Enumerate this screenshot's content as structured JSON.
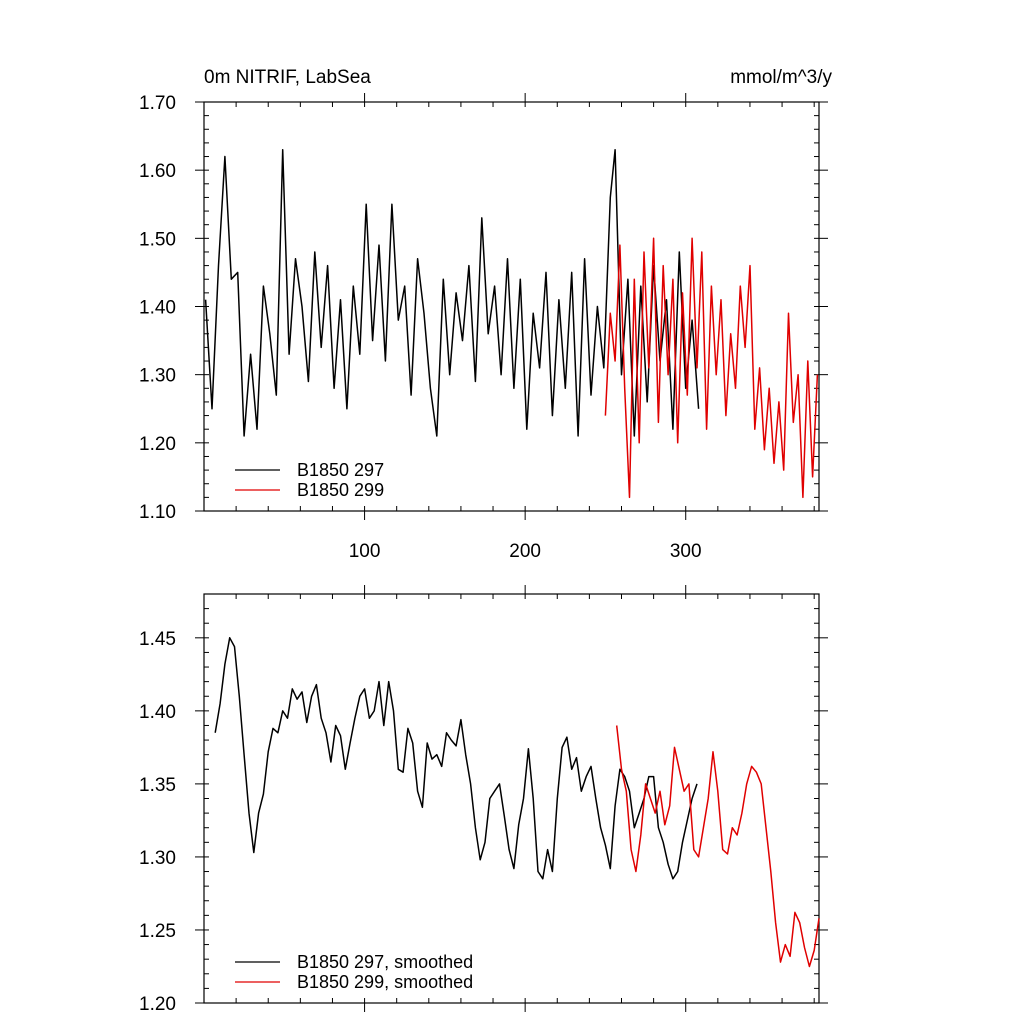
{
  "chart_data": [
    {
      "type": "line",
      "title": "0m NITRIF, LabSea",
      "units": "mmol/m^3/y",
      "xlim": [
        0,
        383
      ],
      "ylim": [
        1.1,
        1.7
      ],
      "yticks": [
        1.1,
        1.2,
        1.3,
        1.4,
        1.5,
        1.6,
        1.7
      ],
      "ytick_labels": [
        "1.10",
        "1.20",
        "1.30",
        "1.40",
        "1.50",
        "1.60",
        "1.70"
      ],
      "xticks": [
        100,
        200,
        300
      ],
      "xtick_labels": [
        "100",
        "200",
        "300"
      ],
      "legend_position": "bottom-left",
      "series": [
        {
          "name": "B1850 297",
          "color": "#000000",
          "x": [
            1,
            5,
            9,
            13,
            17,
            21,
            25,
            29,
            33,
            37,
            41,
            45,
            49,
            53,
            57,
            61,
            65,
            69,
            73,
            77,
            81,
            85,
            89,
            93,
            97,
            101,
            105,
            109,
            113,
            117,
            121,
            125,
            129,
            133,
            137,
            141,
            145,
            149,
            153,
            157,
            161,
            165,
            169,
            173,
            177,
            181,
            185,
            189,
            193,
            197,
            201,
            205,
            209,
            213,
            217,
            221,
            225,
            229,
            233,
            237,
            241,
            245,
            249,
            253,
            256,
            260,
            264,
            268,
            272,
            276,
            280,
            284,
            288,
            292,
            296,
            300,
            304,
            308,
            312,
            316,
            320,
            324,
            328,
            332,
            336,
            340,
            344,
            348,
            352,
            356,
            360,
            364,
            368,
            372,
            376,
            380,
            383
          ],
          "values": [
            1.41,
            1.25,
            1.46,
            1.62,
            1.44,
            1.45,
            1.21,
            1.33,
            1.22,
            1.43,
            1.36,
            1.27,
            1.63,
            1.33,
            1.47,
            1.4,
            1.29,
            1.48,
            1.34,
            1.46,
            1.28,
            1.41,
            1.25,
            1.43,
            1.33,
            1.55,
            1.35,
            1.49,
            1.32,
            1.55,
            1.38,
            1.43,
            1.27,
            1.47,
            1.39,
            1.28,
            1.21,
            1.44,
            1.3,
            1.42,
            1.35,
            1.46,
            1.29,
            1.53,
            1.36,
            1.43,
            1.3,
            1.47,
            1.28,
            1.44,
            1.22,
            1.39,
            1.31,
            1.45,
            1.24,
            1.41,
            1.28,
            1.45,
            1.21,
            1.47,
            1.27,
            1.4,
            1.31,
            1.56,
            1.63,
            1.3,
            1.44,
            1.21,
            1.43,
            1.26,
            1.46,
            1.32,
            1.41,
            1.22,
            1.48,
            1.28,
            1.38,
            1.25,
            null,
            null,
            null,
            null,
            null,
            null,
            null,
            null,
            null,
            null,
            null,
            null,
            null,
            null,
            null,
            null,
            null,
            null,
            null
          ]
        },
        {
          "name": "B1850 299",
          "color": "#e00000",
          "x": [
            250,
            253,
            256,
            259,
            262,
            265,
            268,
            271,
            274,
            277,
            280,
            283,
            286,
            289,
            292,
            295,
            298,
            301,
            304,
            307,
            310,
            313,
            316,
            319,
            322,
            325,
            328,
            331,
            334,
            337,
            340,
            343,
            346,
            349,
            352,
            355,
            358,
            361,
            364,
            367,
            370,
            373,
            376,
            379,
            382
          ],
          "values": [
            1.24,
            1.39,
            1.32,
            1.49,
            1.28,
            1.12,
            1.44,
            1.2,
            1.48,
            1.31,
            1.5,
            1.23,
            1.46,
            1.3,
            1.44,
            1.2,
            1.42,
            1.27,
            1.5,
            1.31,
            1.48,
            1.22,
            1.43,
            1.3,
            1.41,
            1.24,
            1.36,
            1.28,
            1.43,
            1.34,
            1.46,
            1.22,
            1.31,
            1.19,
            1.28,
            1.17,
            1.26,
            1.16,
            1.39,
            1.23,
            1.3,
            1.12,
            1.32,
            1.15,
            1.3
          ]
        }
      ]
    },
    {
      "type": "line",
      "title": "",
      "xlim": [
        0,
        383
      ],
      "ylim": [
        1.2,
        1.48
      ],
      "yticks": [
        1.2,
        1.25,
        1.3,
        1.35,
        1.4,
        1.45
      ],
      "ytick_labels": [
        "1.20",
        "1.25",
        "1.30",
        "1.35",
        "1.40",
        "1.45"
      ],
      "legend_position": "bottom-left",
      "series": [
        {
          "name": "B1850 297, smoothed",
          "color": "#000000",
          "x": [
            7,
            10,
            13,
            16,
            19,
            22,
            25,
            28,
            31,
            34,
            37,
            40,
            43,
            46,
            49,
            52,
            55,
            58,
            61,
            64,
            67,
            70,
            73,
            76,
            79,
            82,
            85,
            88,
            91,
            94,
            97,
            100,
            103,
            106,
            109,
            112,
            115,
            118,
            121,
            124,
            127,
            130,
            133,
            136,
            139,
            142,
            145,
            148,
            151,
            154,
            157,
            160,
            163,
            166,
            169,
            172,
            175,
            178,
            181,
            184,
            187,
            190,
            193,
            196,
            199,
            202,
            205,
            208,
            211,
            214,
            217,
            220,
            223,
            226,
            229,
            232,
            235,
            238,
            241,
            244,
            247,
            250,
            253,
            256,
            259,
            262,
            265,
            268,
            271,
            274,
            277,
            280,
            283,
            286,
            289,
            292,
            295,
            298,
            301,
            304,
            307
          ],
          "values": [
            1.385,
            1.405,
            1.432,
            1.45,
            1.444,
            1.41,
            1.37,
            1.33,
            1.303,
            1.33,
            1.343,
            1.372,
            1.388,
            1.385,
            1.4,
            1.395,
            1.415,
            1.408,
            1.413,
            1.392,
            1.41,
            1.418,
            1.395,
            1.385,
            1.365,
            1.39,
            1.383,
            1.36,
            1.378,
            1.395,
            1.41,
            1.415,
            1.395,
            1.4,
            1.42,
            1.39,
            1.42,
            1.4,
            1.36,
            1.358,
            1.388,
            1.378,
            1.345,
            1.334,
            1.378,
            1.367,
            1.37,
            1.362,
            1.385,
            1.38,
            1.376,
            1.394,
            1.37,
            1.35,
            1.32,
            1.298,
            1.31,
            1.34,
            1.345,
            1.35,
            1.328,
            1.305,
            1.292,
            1.322,
            1.34,
            1.374,
            1.34,
            1.29,
            1.285,
            1.305,
            1.29,
            1.34,
            1.375,
            1.382,
            1.36,
            1.368,
            1.345,
            1.355,
            1.362,
            1.34,
            1.32,
            1.308,
            1.292,
            1.335,
            1.36,
            1.355,
            1.345,
            1.32,
            1.33,
            1.34,
            1.355,
            1.355,
            1.32,
            1.31,
            1.295,
            1.285,
            1.29,
            1.31,
            1.325,
            1.34,
            1.35
          ]
        },
        {
          "name": "B1850 299, smoothed",
          "color": "#e00000",
          "x": [
            257,
            260,
            263,
            266,
            269,
            272,
            275,
            278,
            281,
            284,
            287,
            290,
            293,
            296,
            299,
            302,
            305,
            308,
            311,
            314,
            317,
            320,
            323,
            326,
            329,
            332,
            335,
            338,
            341,
            344,
            347,
            350,
            353,
            356,
            359,
            362,
            365,
            368,
            371,
            374,
            377,
            380,
            383
          ],
          "values": [
            1.39,
            1.36,
            1.345,
            1.305,
            1.29,
            1.315,
            1.35,
            1.34,
            1.33,
            1.345,
            1.322,
            1.335,
            1.375,
            1.36,
            1.345,
            1.35,
            1.305,
            1.3,
            1.32,
            1.34,
            1.372,
            1.345,
            1.305,
            1.302,
            1.32,
            1.315,
            1.33,
            1.35,
            1.362,
            1.358,
            1.35,
            1.32,
            1.29,
            1.255,
            1.228,
            1.24,
            1.232,
            1.262,
            1.255,
            1.238,
            1.225,
            1.236,
            1.258
          ]
        }
      ]
    }
  ]
}
